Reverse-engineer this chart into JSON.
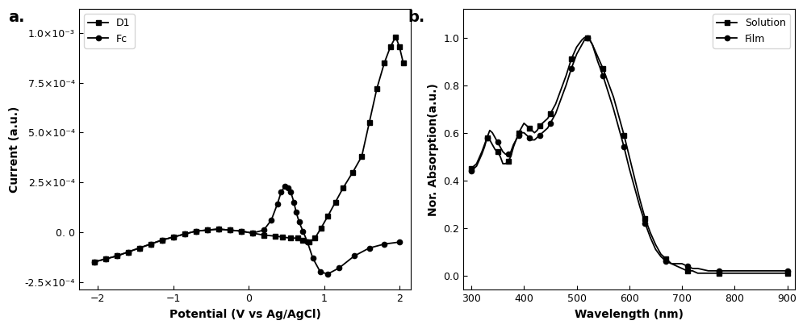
{
  "panel_a": {
    "xlabel": "Potential (V vs Ag/AgCl)",
    "ylabel": "Current (a.u.)",
    "xlim": [
      -2.25,
      2.15
    ],
    "ylim": [
      -0.00029,
      0.00112
    ],
    "yticks": [
      -0.00025,
      0.0,
      0.00025,
      0.0005,
      0.00075,
      0.001
    ],
    "ytick_labels": [
      "-2.5×10⁻⁴",
      "0.0",
      "2.5×10⁻⁴",
      "5.0×10⁻⁴",
      "7.5×10⁻⁴",
      "1.0×10⁻³"
    ],
    "xticks": [
      -2,
      -1,
      0,
      1,
      2
    ],
    "D1_x": [
      -2.05,
      -1.9,
      -1.75,
      -1.6,
      -1.45,
      -1.3,
      -1.15,
      -1.0,
      -0.85,
      -0.7,
      -0.55,
      -0.4,
      -0.25,
      -0.1,
      0.05,
      0.2,
      0.35,
      0.45,
      0.55,
      0.65,
      0.72,
      0.8,
      0.88,
      0.96,
      1.05,
      1.15,
      1.25,
      1.38,
      1.5,
      1.6,
      1.7,
      1.8,
      1.88,
      1.95,
      2.0,
      2.05
    ],
    "D1_y": [
      -0.00015,
      -0.000135,
      -0.00012,
      -0.0001,
      -8e-05,
      -6e-05,
      -4e-05,
      -2.5e-05,
      -1e-05,
      5e-06,
      1e-05,
      1.5e-05,
      1e-05,
      5e-06,
      -5e-06,
      -1.5e-05,
      -2e-05,
      -2.5e-05,
      -3e-05,
      -3e-05,
      -4e-05,
      -5e-05,
      -3e-05,
      2e-05,
      8e-05,
      0.00015,
      0.00022,
      0.0003,
      0.00038,
      0.00055,
      0.00072,
      0.00085,
      0.00093,
      0.00098,
      0.00093,
      0.00085
    ],
    "Fc_x": [
      -2.05,
      -1.9,
      -1.75,
      -1.6,
      -1.45,
      -1.3,
      -1.15,
      -1.0,
      -0.85,
      -0.7,
      -0.55,
      -0.4,
      -0.25,
      -0.1,
      0.05,
      0.2,
      0.3,
      0.38,
      0.43,
      0.48,
      0.52,
      0.56,
      0.6,
      0.63,
      0.67,
      0.72,
      0.78,
      0.85,
      0.95,
      1.05,
      1.2,
      1.4,
      1.6,
      1.8,
      2.0
    ],
    "Fc_y": [
      -0.00015,
      -0.000135,
      -0.00012,
      -0.0001,
      -8e-05,
      -6e-05,
      -4e-05,
      -2.5e-05,
      -1e-05,
      5e-06,
      1e-05,
      1.5e-05,
      1e-05,
      5e-06,
      -5e-06,
      1e-05,
      6e-05,
      0.00014,
      0.0002,
      0.00023,
      0.00022,
      0.0002,
      0.00015,
      0.0001,
      5e-05,
      5e-06,
      -5e-05,
      -0.00013,
      -0.0002,
      -0.00021,
      -0.00018,
      -0.00012,
      -8e-05,
      -6e-05,
      -5e-05
    ]
  },
  "panel_b": {
    "xlabel": "Wavelength (nm)",
    "ylabel": "Nor. Absorption(a.u.)",
    "xlim": [
      285,
      915
    ],
    "ylim": [
      -0.06,
      1.12
    ],
    "yticks": [
      0.0,
      0.2,
      0.4,
      0.6,
      0.8,
      1.0
    ],
    "xticks": [
      300,
      400,
      500,
      600,
      700,
      800,
      900
    ],
    "solution_x": [
      300,
      310,
      320,
      325,
      330,
      335,
      340,
      345,
      350,
      355,
      360,
      365,
      370,
      375,
      380,
      385,
      390,
      395,
      400,
      405,
      410,
      415,
      420,
      425,
      430,
      435,
      440,
      445,
      450,
      460,
      470,
      480,
      490,
      500,
      510,
      515,
      520,
      525,
      530,
      540,
      550,
      560,
      570,
      580,
      590,
      600,
      610,
      620,
      630,
      640,
      650,
      660,
      670,
      680,
      690,
      700,
      710,
      720,
      730,
      750,
      770,
      800,
      830,
      860,
      900
    ],
    "solution_y": [
      0.45,
      0.47,
      0.52,
      0.55,
      0.58,
      0.57,
      0.55,
      0.53,
      0.52,
      0.5,
      0.47,
      0.47,
      0.48,
      0.5,
      0.54,
      0.57,
      0.6,
      0.62,
      0.64,
      0.63,
      0.62,
      0.61,
      0.6,
      0.61,
      0.63,
      0.64,
      0.65,
      0.66,
      0.68,
      0.72,
      0.78,
      0.84,
      0.91,
      0.96,
      0.99,
      1.0,
      1.0,
      0.99,
      0.97,
      0.92,
      0.87,
      0.81,
      0.75,
      0.67,
      0.59,
      0.5,
      0.41,
      0.32,
      0.24,
      0.18,
      0.13,
      0.09,
      0.07,
      0.05,
      0.04,
      0.03,
      0.02,
      0.02,
      0.01,
      0.01,
      0.01,
      0.01,
      0.01,
      0.01,
      0.01
    ],
    "film_x": [
      300,
      310,
      320,
      325,
      330,
      335,
      340,
      345,
      350,
      355,
      360,
      365,
      370,
      375,
      380,
      385,
      390,
      395,
      400,
      405,
      410,
      415,
      420,
      425,
      430,
      435,
      440,
      445,
      450,
      460,
      470,
      480,
      490,
      500,
      510,
      515,
      520,
      525,
      530,
      540,
      550,
      560,
      570,
      580,
      590,
      600,
      610,
      620,
      630,
      640,
      650,
      660,
      670,
      680,
      690,
      700,
      710,
      720,
      730,
      750,
      770,
      800,
      830,
      860,
      900
    ],
    "film_y": [
      0.44,
      0.46,
      0.51,
      0.54,
      0.58,
      0.61,
      0.6,
      0.58,
      0.56,
      0.54,
      0.52,
      0.51,
      0.51,
      0.52,
      0.55,
      0.57,
      0.59,
      0.6,
      0.6,
      0.59,
      0.58,
      0.57,
      0.57,
      0.58,
      0.59,
      0.6,
      0.61,
      0.62,
      0.64,
      0.68,
      0.74,
      0.8,
      0.87,
      0.93,
      0.97,
      0.99,
      1.0,
      0.99,
      0.97,
      0.9,
      0.84,
      0.77,
      0.7,
      0.62,
      0.54,
      0.45,
      0.37,
      0.29,
      0.22,
      0.16,
      0.11,
      0.08,
      0.06,
      0.05,
      0.05,
      0.05,
      0.04,
      0.03,
      0.03,
      0.02,
      0.02,
      0.02,
      0.02,
      0.02,
      0.02
    ]
  },
  "background_color": "#ffffff",
  "line_color": "#000000"
}
